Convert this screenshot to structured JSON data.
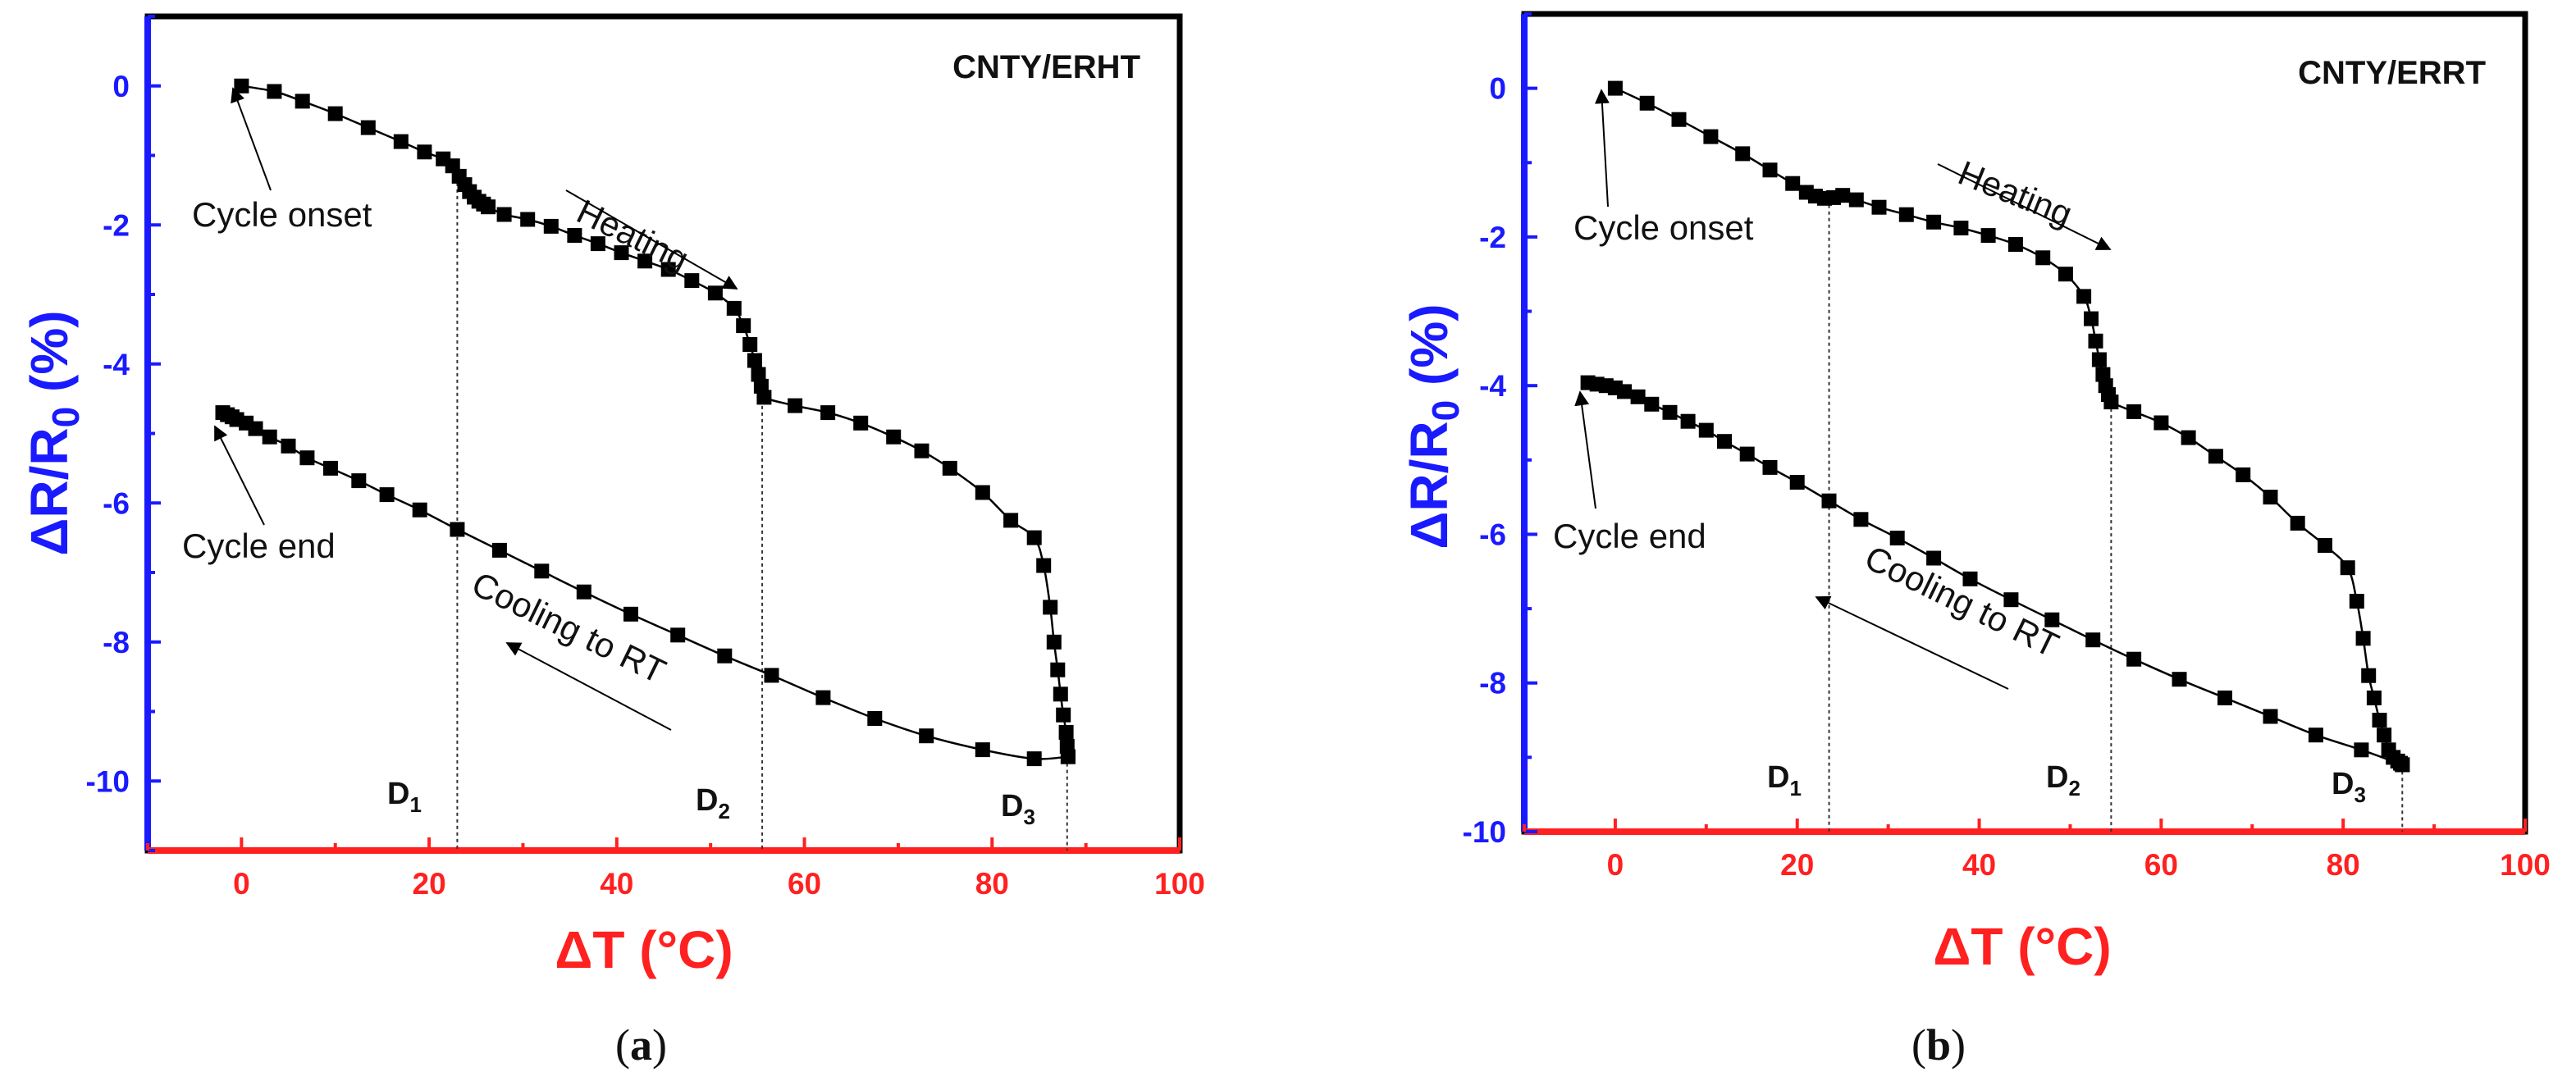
{
  "figure": {
    "panels": [
      {
        "id": "a",
        "panel_label_open": "(",
        "panel_label_letter": "a",
        "panel_label_close": ")",
        "title": "CNTY/ERHT",
        "xlabel": "ΔT (°C)",
        "ylabel_main": "ΔR/R",
        "ylabel_sub": "0",
        "ylabel_tail": " (%)",
        "xticks": [
          "0",
          "20",
          "40",
          "60",
          "80",
          "100"
        ],
        "yticks": [
          "0",
          "-2",
          "-4",
          "-6",
          "-8",
          "-10"
        ],
        "annotations": {
          "onset": "Cycle onset",
          "end": "Cycle end",
          "heating": "Heating",
          "cooling": "Cooling to RT"
        },
        "d_labels": [
          {
            "main": "D",
            "sub": "1",
            "x": 23
          },
          {
            "main": "D",
            "sub": "2",
            "x": 55.5
          },
          {
            "main": "D",
            "sub": "3",
            "x": 88
          }
        ]
      },
      {
        "id": "b",
        "panel_label_open": "(",
        "panel_label_letter": "b",
        "panel_label_close": ")",
        "title": "CNTY/ERRT",
        "xlabel": "ΔT (°C)",
        "ylabel_main": "ΔR/R",
        "ylabel_sub": "0",
        "ylabel_tail": " (%)",
        "xticks": [
          "0",
          "20",
          "40",
          "60",
          "80",
          "100"
        ],
        "yticks": [
          "0",
          "-2",
          "-4",
          "-6",
          "-8",
          "-10"
        ],
        "annotations": {
          "onset": "Cycle onset",
          "end": "Cycle end",
          "heating": "Heating",
          "cooling": "Cooling to RT"
        },
        "d_labels": [
          {
            "main": "D",
            "sub": "1",
            "x": 23.5
          },
          {
            "main": "D",
            "sub": "2",
            "x": 54.5
          },
          {
            "main": "D",
            "sub": "3",
            "x": 86.5
          }
        ]
      }
    ],
    "colors": {
      "x_axis": "#ff2020",
      "y_axis": "#1a1aff",
      "frame": "#000000",
      "marker": "#000000"
    }
  },
  "chart_data": [
    {
      "type": "line",
      "title": "CNTY/ERHT",
      "xlabel": "ΔT (°C)",
      "ylabel": "ΔR/R0 (%)",
      "xlim": [
        -10,
        100
      ],
      "ylim": [
        -11,
        1
      ],
      "series": [
        {
          "name": "Heating",
          "x": [
            0,
            3.5,
            6.5,
            10,
            13.5,
            17,
            19.5,
            21.5,
            22.5,
            23.2,
            23.8,
            24.3,
            24.8,
            25.3,
            25.8,
            26.3,
            28,
            30.5,
            33,
            35.5,
            38,
            40.5,
            43,
            45.5,
            48,
            50.5,
            52.5,
            53.5,
            54.2,
            54.7,
            55.1,
            55.4,
            55.7,
            59,
            62.5,
            66,
            69.5,
            72.5,
            75.5,
            79,
            82,
            84.5,
            85.5,
            86.2,
            86.6,
            87,
            87.3,
            87.6,
            87.9,
            88,
            88.1
          ],
          "y": [
            0,
            -0.08,
            -0.22,
            -0.4,
            -0.6,
            -0.8,
            -0.95,
            -1.05,
            -1.15,
            -1.3,
            -1.42,
            -1.52,
            -1.6,
            -1.66,
            -1.7,
            -1.74,
            -1.85,
            -1.92,
            -2.02,
            -2.15,
            -2.27,
            -2.4,
            -2.52,
            -2.64,
            -2.8,
            -2.98,
            -3.2,
            -3.45,
            -3.72,
            -3.95,
            -4.15,
            -4.32,
            -4.48,
            -4.6,
            -4.7,
            -4.85,
            -5.05,
            -5.25,
            -5.5,
            -5.85,
            -6.25,
            -6.5,
            -6.9,
            -7.5,
            -8.0,
            -8.4,
            -8.75,
            -9.05,
            -9.3,
            -9.5,
            -9.65
          ]
        },
        {
          "name": "Cooling to RT",
          "x": [
            88.1,
            84.5,
            79,
            73,
            67.5,
            62,
            56.5,
            51.5,
            46.5,
            41.5,
            36.5,
            32,
            27.5,
            23,
            19,
            15.5,
            12.5,
            9.5,
            7,
            5,
            3,
            1.5,
            0.5,
            -0.5,
            -1,
            -1.5,
            -2
          ],
          "y": [
            -9.65,
            -9.68,
            -9.55,
            -9.35,
            -9.1,
            -8.8,
            -8.48,
            -8.2,
            -7.9,
            -7.6,
            -7.28,
            -6.98,
            -6.68,
            -6.38,
            -6.1,
            -5.88,
            -5.68,
            -5.5,
            -5.35,
            -5.18,
            -5.05,
            -4.93,
            -4.85,
            -4.8,
            -4.76,
            -4.73,
            -4.7
          ]
        }
      ]
    },
    {
      "type": "line",
      "title": "CNTY/ERRT",
      "xlabel": "ΔT (°C)",
      "ylabel": "ΔR/R0 (%)",
      "xlim": [
        -10,
        100
      ],
      "ylim": [
        -10,
        1
      ],
      "series": [
        {
          "name": "Heating",
          "x": [
            0,
            3.5,
            7,
            10.5,
            14,
            17,
            19.5,
            21,
            22,
            23,
            24,
            25,
            26.5,
            29,
            32,
            35,
            38,
            41,
            44,
            47,
            49.5,
            51.5,
            52.3,
            52.8,
            53.2,
            53.6,
            53.9,
            54.2,
            54.5,
            57,
            60,
            63,
            66,
            69,
            72,
            75,
            78,
            80.5,
            81.5,
            82.2,
            82.8,
            83.4,
            84,
            84.5,
            85,
            85.5,
            86,
            86.3,
            86.5
          ],
          "y": [
            0,
            -0.2,
            -0.42,
            -0.65,
            -0.88,
            -1.1,
            -1.28,
            -1.4,
            -1.45,
            -1.48,
            -1.47,
            -1.44,
            -1.5,
            -1.6,
            -1.7,
            -1.8,
            -1.88,
            -1.98,
            -2.1,
            -2.28,
            -2.5,
            -2.8,
            -3.1,
            -3.4,
            -3.65,
            -3.85,
            -4.0,
            -4.12,
            -4.22,
            -4.35,
            -4.5,
            -4.7,
            -4.95,
            -5.2,
            -5.5,
            -5.85,
            -6.15,
            -6.45,
            -6.9,
            -7.4,
            -7.9,
            -8.2,
            -8.5,
            -8.7,
            -8.9,
            -9.0,
            -9.05,
            -9.08,
            -9.1
          ]
        },
        {
          "name": "Cooling to RT",
          "x": [
            86.5,
            82,
            77,
            72,
            67,
            62,
            57,
            52.5,
            48,
            43.5,
            39,
            35,
            31,
            27,
            23.5,
            20,
            17,
            14.5,
            12,
            10,
            8,
            6,
            4,
            2.5,
            1,
            0,
            -1,
            -2,
            -3
          ],
          "y": [
            -9.1,
            -8.9,
            -8.7,
            -8.45,
            -8.2,
            -7.95,
            -7.68,
            -7.42,
            -7.15,
            -6.88,
            -6.6,
            -6.32,
            -6.05,
            -5.8,
            -5.55,
            -5.3,
            -5.1,
            -4.92,
            -4.75,
            -4.6,
            -4.48,
            -4.36,
            -4.25,
            -4.15,
            -4.08,
            -4.03,
            -4.0,
            -3.98,
            -3.96
          ]
        }
      ]
    }
  ]
}
